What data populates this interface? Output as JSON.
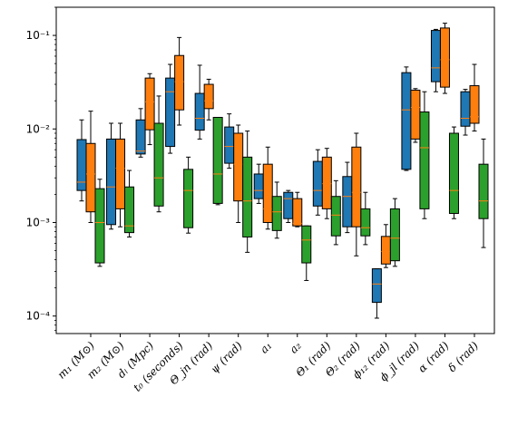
{
  "chart_data": {
    "type": "box",
    "yscale": "log",
    "ylim": [
      6.5e-05,
      0.2
    ],
    "yticks": [
      {
        "value": 0.0001,
        "label": "10⁻⁴"
      },
      {
        "value": 0.001,
        "label": "10⁻³"
      },
      {
        "value": 0.01,
        "label": "10⁻²"
      },
      {
        "value": 0.1,
        "label": "10⁻¹"
      }
    ],
    "categories": [
      "m₁ (M⊙)",
      "m₂ (M⊙)",
      "dₗ (Mpc)",
      "t₀ (seconds)",
      "Θ_jn (rad)",
      "ψ (rad)",
      "a₁",
      "a₂",
      "Θ₁ (rad)",
      "Θ₂ (rad)",
      "ϕ₁₂ (rad)",
      "ϕ_jl (rad)",
      "α (rad)",
      "δ (rad)"
    ],
    "colors": [
      "#1f77b4",
      "#ff7f0e",
      "#2ca02c"
    ],
    "median_color": "#ff7f0e",
    "boxes": [
      [
        {
          "whislo": 0.0017,
          "q1": 0.0022,
          "med": 0.0027,
          "q3": 0.0077,
          "whishi": 0.0125
        },
        {
          "whislo": 0.001,
          "q1": 0.0013,
          "med": 0.0033,
          "q3": 0.007,
          "whishi": 0.0155
        },
        {
          "whislo": 0.00034,
          "q1": 0.00037,
          "med": 0.001,
          "q3": 0.0023,
          "whishi": 0.0029
        }
      ],
      [
        {
          "whislo": 0.00085,
          "q1": 0.00095,
          "med": 0.0024,
          "q3": 0.0078,
          "whishi": 0.0115
        },
        {
          "whislo": 0.0009,
          "q1": 0.0014,
          "med": 0.0038,
          "q3": 0.0078,
          "whishi": 0.0115
        },
        {
          "whislo": 0.0007,
          "q1": 0.00078,
          "med": 0.00092,
          "q3": 0.0024,
          "whishi": 0.0036
        }
      ],
      [
        {
          "whislo": 0.005,
          "q1": 0.0054,
          "med": 0.0058,
          "q3": 0.0125,
          "whishi": 0.0165
        },
        {
          "whislo": 0.0068,
          "q1": 0.0098,
          "med": 0.0195,
          "q3": 0.035,
          "whishi": 0.039
        },
        {
          "whislo": 0.0013,
          "q1": 0.0015,
          "med": 0.003,
          "q3": 0.0115,
          "whishi": 0.0225
        }
      ],
      [
        {
          "whislo": 0.0055,
          "q1": 0.0065,
          "med": 0.025,
          "q3": 0.035,
          "whishi": 0.049
        },
        {
          "whislo": 0.011,
          "q1": 0.016,
          "med": 0.032,
          "q3": 0.061,
          "whishi": 0.095
        },
        {
          "whislo": 0.00077,
          "q1": 0.00088,
          "med": 0.0022,
          "q3": 0.0037,
          "whishi": 0.005
        }
      ],
      [
        {
          "whislo": 0.0078,
          "q1": 0.0097,
          "med": 0.013,
          "q3": 0.024,
          "whishi": 0.048
        },
        {
          "whislo": 0.0125,
          "q1": 0.0165,
          "med": 0.02,
          "q3": 0.03,
          "whishi": 0.034
        },
        {
          "whislo": 0.00155,
          "q1": 0.0016,
          "med": 0.0033,
          "q3": 0.0133,
          "whishi": 0.0133
        }
      ],
      [
        {
          "whislo": 0.0038,
          "q1": 0.0043,
          "med": 0.0065,
          "q3": 0.0105,
          "whishi": 0.0145
        },
        {
          "whislo": 0.001,
          "q1": 0.0017,
          "med": 0.0042,
          "q3": 0.009,
          "whishi": 0.011
        },
        {
          "whislo": 0.00048,
          "q1": 0.0007,
          "med": 0.0017,
          "q3": 0.005,
          "whishi": 0.0095
        }
      ],
      [
        {
          "whislo": 0.0016,
          "q1": 0.0018,
          "med": 0.0022,
          "q3": 0.0033,
          "whishi": 0.0042
        },
        {
          "whislo": 0.00085,
          "q1": 0.001,
          "med": 0.0014,
          "q3": 0.0042,
          "whishi": 0.0064
        },
        {
          "whislo": 0.00068,
          "q1": 0.00082,
          "med": 0.0013,
          "q3": 0.0019,
          "whishi": 0.0027
        }
      ],
      [
        {
          "whislo": 0.001,
          "q1": 0.0011,
          "med": 0.0018,
          "q3": 0.0021,
          "whishi": 0.0022
        },
        {
          "whislo": 0.0009,
          "q1": 0.00092,
          "med": 0.00098,
          "q3": 0.0018,
          "whishi": 0.0021
        },
        {
          "whislo": 0.00024,
          "q1": 0.00037,
          "med": 0.00065,
          "q3": 0.00092,
          "whishi": 0.00092
        }
      ],
      [
        {
          "whislo": 0.0012,
          "q1": 0.0015,
          "med": 0.0022,
          "q3": 0.0045,
          "whishi": 0.006
        },
        {
          "whislo": 0.0011,
          "q1": 0.0014,
          "med": 0.0026,
          "q3": 0.005,
          "whishi": 0.0062
        },
        {
          "whislo": 0.00058,
          "q1": 0.00072,
          "med": 0.0012,
          "q3": 0.0019,
          "whishi": 0.0028
        }
      ],
      [
        {
          "whislo": 0.00078,
          "q1": 0.0009,
          "med": 0.0019,
          "q3": 0.0031,
          "whishi": 0.0044
        },
        {
          "whislo": 0.00044,
          "q1": 0.0009,
          "med": 0.0021,
          "q3": 0.0064,
          "whishi": 0.009
        },
        {
          "whislo": 0.00058,
          "q1": 0.00072,
          "med": 0.00088,
          "q3": 0.0014,
          "whishi": 0.0021
        }
      ],
      [
        {
          "whislo": 9.5e-05,
          "q1": 0.00014,
          "med": 0.00022,
          "q3": 0.00032,
          "whishi": 0.00032
        },
        {
          "whislo": 0.00033,
          "q1": 0.00036,
          "med": 0.00049,
          "q3": 0.00071,
          "whishi": 0.00095
        },
        {
          "whislo": 0.00034,
          "q1": 0.00039,
          "med": 0.00068,
          "q3": 0.0014,
          "whishi": 0.0018
        }
      ],
      [
        {
          "whislo": 0.0036,
          "q1": 0.0037,
          "med": 0.016,
          "q3": 0.04,
          "whishi": 0.046
        },
        {
          "whislo": 0.0072,
          "q1": 0.0078,
          "med": 0.017,
          "q3": 0.026,
          "whishi": 0.027
        },
        {
          "whislo": 0.0011,
          "q1": 0.0014,
          "med": 0.0063,
          "q3": 0.0152,
          "whishi": 0.025
        }
      ],
      [
        {
          "whislo": 0.025,
          "q1": 0.032,
          "med": 0.045,
          "q3": 0.113,
          "whishi": 0.116
        },
        {
          "whislo": 0.024,
          "q1": 0.028,
          "med": 0.055,
          "q3": 0.12,
          "whishi": 0.135
        },
        {
          "whislo": 0.0011,
          "q1": 0.00125,
          "med": 0.0022,
          "q3": 0.009,
          "whishi": 0.0105
        }
      ],
      [
        {
          "whislo": 0.0086,
          "q1": 0.0107,
          "med": 0.013,
          "q3": 0.025,
          "whishi": 0.0265
        },
        {
          "whislo": 0.0095,
          "q1": 0.0115,
          "med": 0.0135,
          "q3": 0.029,
          "whishi": 0.049
        },
        {
          "whislo": 0.00054,
          "q1": 0.0011,
          "med": 0.0017,
          "q3": 0.0042,
          "whishi": 0.0078
        }
      ]
    ]
  }
}
